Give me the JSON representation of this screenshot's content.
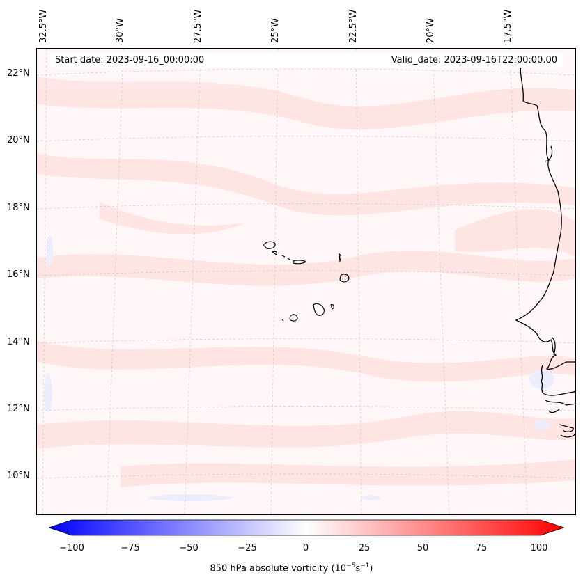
{
  "header": {
    "start_date": "Start date: 2023-09-16_00:00:00",
    "valid_date": "Valid_date: 2023-09-16T22:00:00.00"
  },
  "lat_labels": [
    "22°N",
    "20°N",
    "18°N",
    "16°N",
    "14°N",
    "12°N",
    "10°N"
  ],
  "lon_labels": [
    "32.5°W",
    "30°W",
    "27.5°W",
    "25°W",
    "22.5°W",
    "20°W",
    "17.5°W"
  ],
  "colorbar": {
    "ticks": [
      "−100",
      "−75",
      "−50",
      "−25",
      "0",
      "25",
      "50",
      "75",
      "100"
    ],
    "label_main": "850 hPa absolute vorticity (10",
    "label_exp1": "−5",
    "label_mid": "s",
    "label_exp2": "−1",
    "label_end": ")",
    "min_color": "#0000ff",
    "mid_color": "#ffffff",
    "max_color": "#ff0000"
  },
  "colors": {
    "background_field": "#fff7f7",
    "positive_weak": "#ffe0e0",
    "positive_moderate": "#ffd0d0",
    "negative_weak": "#eef0ff",
    "coastline": "#000000",
    "gridline": "#bbbbbb"
  }
}
